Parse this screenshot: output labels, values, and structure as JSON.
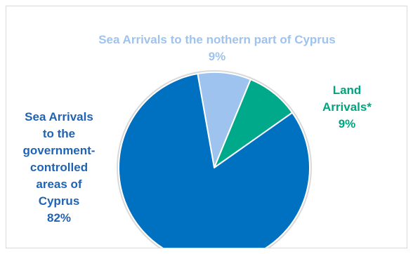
{
  "chart_data": {
    "type": "pie",
    "slices": [
      {
        "label": "Sea Arrivals to the nothern part of Cyprus",
        "value": 9,
        "percent_label": "9%",
        "color": "#9ec3ee",
        "label_color": "#9ec3ee"
      },
      {
        "label": "Land Arrivals*",
        "value": 9,
        "percent_label": "9%",
        "color": "#00a98a",
        "label_color": "#00a57f"
      },
      {
        "label": "Sea Arrivals to the government-controlled areas of Cyprus",
        "value": 82,
        "percent_label": "82%",
        "color": "#0070c0",
        "label_color": "#1f63b5"
      }
    ],
    "start_angle_deg_clockwise_from_top": -10,
    "slice_border_color": "#ffffff",
    "outer_ring_color": "#d9d9d9",
    "legend": "none"
  },
  "labels": {
    "sea_north_line": "Sea Arrivals to the nothern part of Cyprus\n9%",
    "land_line": "Land\nArrivals*\n9%",
    "sea_gov_line": "Sea Arrivals\nto the\ngovernment-\ncontrolled\nareas of\nCyprus\n82%"
  }
}
